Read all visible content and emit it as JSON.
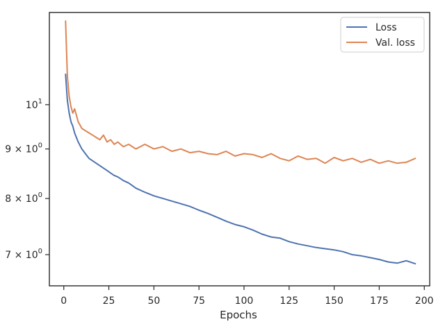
{
  "chart_data": {
    "type": "line",
    "title": "",
    "xlabel": "Epochs",
    "ylabel": "",
    "yscale": "log",
    "xlim": [
      -8,
      203
    ],
    "ylim": [
      6.5,
      12.45
    ],
    "x_ticks": [
      0,
      25,
      50,
      75,
      100,
      125,
      150,
      175,
      200
    ],
    "x_tick_labels": [
      "0",
      "25",
      "50",
      "75",
      "100",
      "125",
      "150",
      "175",
      "200"
    ],
    "y_ticks": [
      {
        "value": 10,
        "base": "10",
        "exp": "1"
      },
      {
        "value": 9,
        "base": "9 × 10",
        "exp": "0"
      },
      {
        "value": 8,
        "base": "8 × 10",
        "exp": "0"
      },
      {
        "value": 7,
        "base": "7 × 10",
        "exp": "0"
      }
    ],
    "grid": false,
    "legend_position": "top-right",
    "x": [
      1,
      2,
      3,
      4,
      5,
      6,
      8,
      10,
      12,
      14,
      16,
      18,
      20,
      22,
      24,
      26,
      28,
      30,
      33,
      36,
      40,
      45,
      50,
      55,
      60,
      65,
      70,
      75,
      80,
      85,
      90,
      95,
      100,
      105,
      110,
      115,
      120,
      125,
      130,
      135,
      140,
      145,
      150,
      155,
      160,
      165,
      170,
      175,
      180,
      185,
      190,
      195
    ],
    "series": [
      {
        "name": "Loss",
        "color": "#4c72b0",
        "values": [
          10.75,
          10.1,
          9.8,
          9.6,
          9.5,
          9.35,
          9.15,
          9.0,
          8.9,
          8.8,
          8.75,
          8.7,
          8.65,
          8.6,
          8.55,
          8.5,
          8.45,
          8.42,
          8.35,
          8.3,
          8.2,
          8.12,
          8.05,
          8.0,
          7.95,
          7.9,
          7.85,
          7.78,
          7.72,
          7.65,
          7.58,
          7.52,
          7.48,
          7.42,
          7.35,
          7.3,
          7.28,
          7.22,
          7.18,
          7.15,
          7.12,
          7.1,
          7.08,
          7.05,
          7.0,
          6.98,
          6.95,
          6.92,
          6.88,
          6.86,
          6.9,
          6.85
        ]
      },
      {
        "name": "Val. loss",
        "color": "#dd8452",
        "values": [
          12.2,
          10.7,
          10.2,
          9.95,
          9.8,
          9.9,
          9.6,
          9.45,
          9.4,
          9.35,
          9.3,
          9.25,
          9.2,
          9.3,
          9.15,
          9.2,
          9.1,
          9.15,
          9.05,
          9.1,
          9.0,
          9.1,
          9.0,
          9.05,
          8.95,
          9.0,
          8.92,
          8.95,
          8.9,
          8.88,
          8.95,
          8.85,
          8.9,
          8.88,
          8.82,
          8.9,
          8.8,
          8.75,
          8.85,
          8.78,
          8.8,
          8.7,
          8.82,
          8.75,
          8.8,
          8.72,
          8.78,
          8.7,
          8.75,
          8.7,
          8.72,
          8.8
        ]
      }
    ]
  }
}
